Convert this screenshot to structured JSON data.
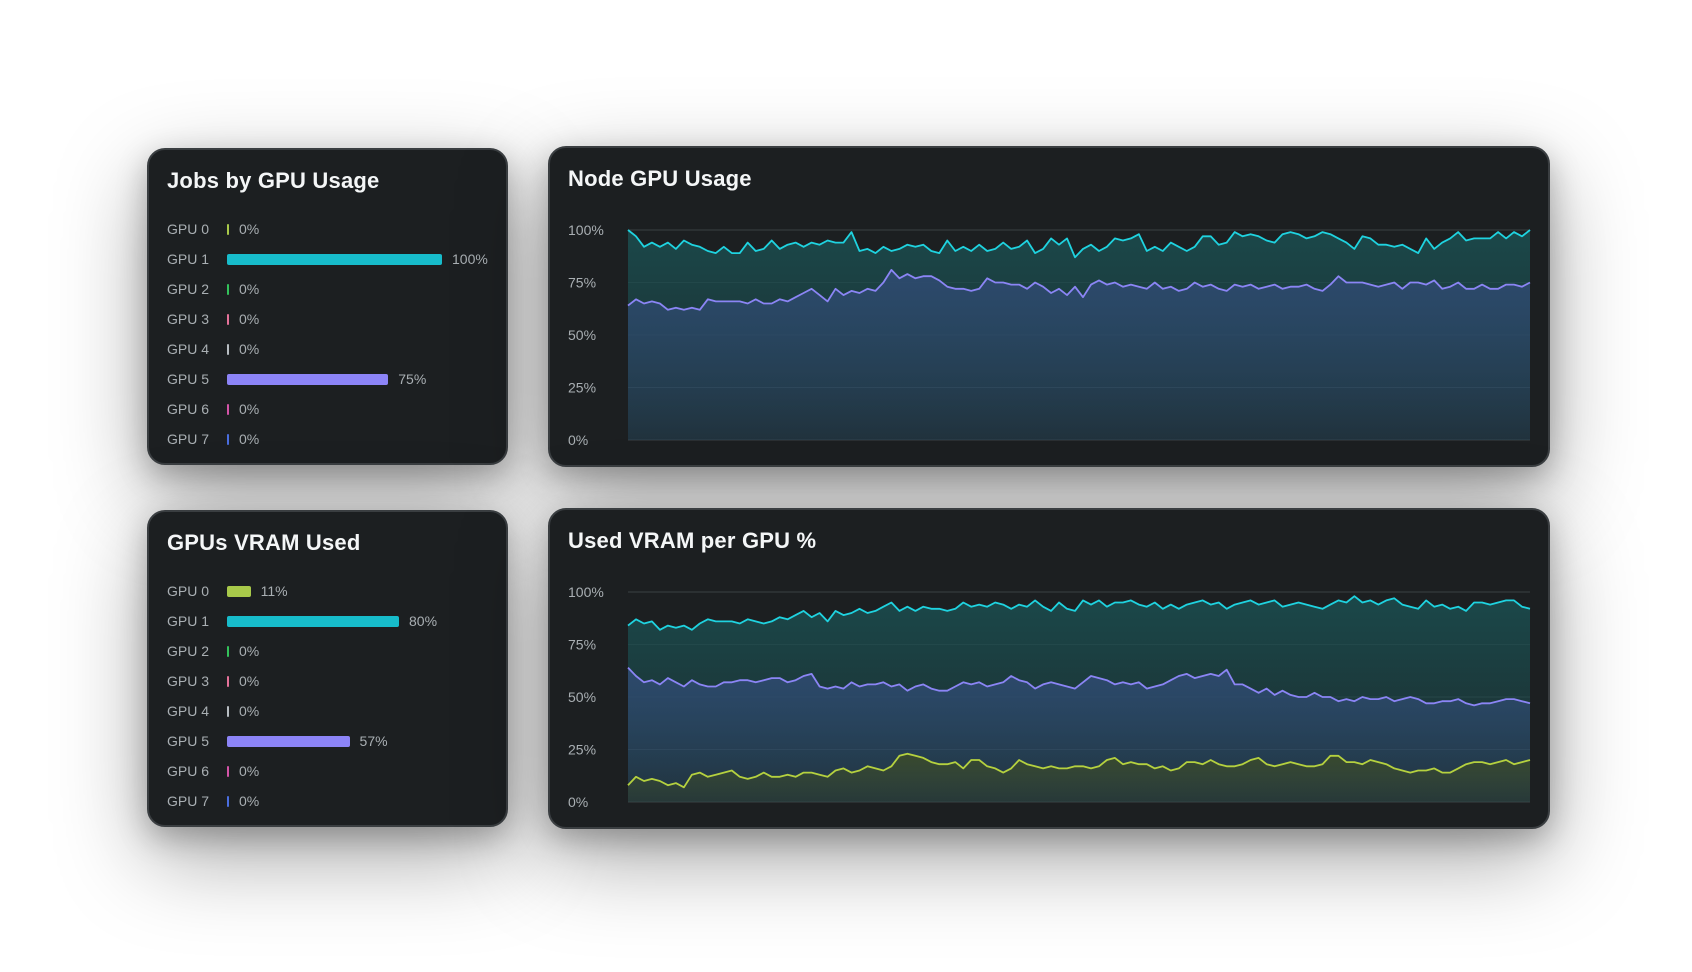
{
  "panels": {
    "jobs_by_gpu": {
      "title": "Jobs by GPU Usage",
      "rows": [
        {
          "label": "GPU 0",
          "value": 0,
          "text": "0%",
          "color": "#a8c94a"
        },
        {
          "label": "GPU 1",
          "value": 100,
          "text": "100%",
          "color": "#17bccb"
        },
        {
          "label": "GPU 2",
          "value": 0,
          "text": "0%",
          "color": "#33c25a"
        },
        {
          "label": "GPU 3",
          "value": 0,
          "text": "0%",
          "color": "#e5729a"
        },
        {
          "label": "GPU 4",
          "value": 0,
          "text": "0%",
          "color": "#b7bdc2"
        },
        {
          "label": "GPU 5",
          "value": 75,
          "text": "75%",
          "color": "#8c84f7"
        },
        {
          "label": "GPU 6",
          "value": 0,
          "text": "0%",
          "color": "#d454a8"
        },
        {
          "label": "GPU 7",
          "value": 0,
          "text": "0%",
          "color": "#4a6ee0"
        }
      ]
    },
    "vram_used": {
      "title": "GPUs VRAM Used",
      "rows": [
        {
          "label": "GPU 0",
          "value": 11,
          "text": "11%",
          "color": "#a8c94a"
        },
        {
          "label": "GPU 1",
          "value": 80,
          "text": "80%",
          "color": "#17bccb"
        },
        {
          "label": "GPU 2",
          "value": 0,
          "text": "0%",
          "color": "#33c25a"
        },
        {
          "label": "GPU 3",
          "value": 0,
          "text": "0%",
          "color": "#e5729a"
        },
        {
          "label": "GPU 4",
          "value": 0,
          "text": "0%",
          "color": "#b7bdc2"
        },
        {
          "label": "GPU 5",
          "value": 57,
          "text": "57%",
          "color": "#8c84f7"
        },
        {
          "label": "GPU 6",
          "value": 0,
          "text": "0%",
          "color": "#d454a8"
        },
        {
          "label": "GPU 7",
          "value": 0,
          "text": "0%",
          "color": "#4a6ee0"
        }
      ]
    },
    "node_gpu_usage": {
      "title": "Node GPU Usage"
    },
    "vram_per_gpu": {
      "title": "Used VRAM per GPU %"
    }
  },
  "chart_data": [
    {
      "type": "bar",
      "title": "Jobs by GPU Usage",
      "categories": [
        "GPU 0",
        "GPU 1",
        "GPU 2",
        "GPU 3",
        "GPU 4",
        "GPU 5",
        "GPU 6",
        "GPU 7"
      ],
      "values": [
        0,
        100,
        0,
        0,
        0,
        75,
        0,
        0
      ]
    },
    {
      "type": "bar",
      "title": "GPUs VRAM Used",
      "categories": [
        "GPU 0",
        "GPU 1",
        "GPU 2",
        "GPU 3",
        "GPU 4",
        "GPU 5",
        "GPU 6",
        "GPU 7"
      ],
      "values": [
        11,
        80,
        0,
        0,
        0,
        57,
        0,
        0
      ]
    },
    {
      "type": "area",
      "title": "Node GPU Usage",
      "y_ticks": [
        "100%",
        "75%",
        "50%",
        "25%",
        "0%"
      ],
      "ylim": [
        0,
        100
      ],
      "grid": true,
      "series": [
        {
          "color": "#1fd3e0",
          "fill": "#1b4a4c",
          "values": [
            100,
            97,
            92,
            94,
            92,
            94,
            91,
            95,
            93,
            92,
            90,
            89,
            92,
            89,
            89,
            94,
            90,
            91,
            95,
            91,
            93,
            94,
            92,
            94,
            93,
            95,
            94,
            94,
            99,
            90,
            91,
            89,
            92,
            90,
            91,
            93,
            92,
            93,
            90,
            89,
            95,
            90,
            92,
            90,
            93,
            90,
            91,
            94,
            91,
            92,
            95,
            89,
            91,
            96,
            93,
            96,
            87,
            91,
            93,
            90,
            92,
            96,
            95,
            96,
            98,
            90,
            92,
            90,
            94,
            92,
            90,
            92,
            97,
            97,
            93,
            94,
            99,
            97,
            98,
            97,
            95,
            94,
            98,
            99,
            98,
            96,
            97,
            99,
            98,
            96,
            94,
            91,
            97,
            96,
            93,
            93,
            92,
            93,
            91,
            89,
            96,
            91,
            94,
            96,
            99,
            95,
            96,
            96,
            96,
            99,
            96,
            99,
            97,
            100
          ]
        },
        {
          "color": "#8b85f5",
          "fill": "#2e4a6f",
          "values": [
            64,
            67,
            65,
            66,
            65,
            62,
            63,
            62,
            63,
            62,
            67,
            66,
            66,
            66,
            66,
            65,
            67,
            65,
            65,
            67,
            66,
            68,
            70,
            72,
            69,
            66,
            72,
            69,
            71,
            70,
            72,
            71,
            75,
            81,
            77,
            79,
            77,
            78,
            78,
            76,
            73,
            72,
            72,
            71,
            72,
            77,
            75,
            75,
            74,
            74,
            72,
            75,
            73,
            70,
            72,
            69,
            73,
            68,
            74,
            76,
            74,
            75,
            73,
            74,
            73,
            72,
            75,
            72,
            73,
            71,
            72,
            75,
            73,
            74,
            72,
            71,
            74,
            73,
            74,
            72,
            73,
            74,
            72,
            73,
            73,
            74,
            72,
            71,
            74,
            78,
            75,
            75,
            75,
            74,
            73,
            74,
            75,
            72,
            75,
            75,
            74,
            76,
            72,
            73,
            75,
            72,
            72,
            74,
            72,
            72,
            74,
            74,
            73,
            75
          ]
        }
      ]
    },
    {
      "type": "area",
      "title": "Used VRAM per GPU %",
      "y_ticks": [
        "100%",
        "75%",
        "50%",
        "25%",
        "0%"
      ],
      "ylim": [
        0,
        100
      ],
      "grid": true,
      "series": [
        {
          "color": "#1fd3e0",
          "fill": "#1b4a4c",
          "values": [
            84,
            87,
            85,
            86,
            82,
            84,
            83,
            84,
            82,
            85,
            87,
            86,
            86,
            86,
            85,
            87,
            86,
            85,
            86,
            88,
            87,
            89,
            91,
            88,
            90,
            86,
            91,
            89,
            90,
            92,
            90,
            91,
            93,
            95,
            91,
            93,
            91,
            93,
            92,
            92,
            91,
            92,
            95,
            93,
            94,
            93,
            95,
            94,
            92,
            94,
            93,
            96,
            93,
            91,
            95,
            92,
            91,
            96,
            94,
            96,
            93,
            95,
            95,
            96,
            94,
            93,
            95,
            92,
            94,
            92,
            94,
            95,
            96,
            94,
            95,
            92,
            94,
            95,
            96,
            94,
            95,
            96,
            93,
            94,
            95,
            94,
            93,
            92,
            94,
            96,
            95,
            98,
            95,
            96,
            94,
            96,
            97,
            94,
            93,
            92,
            96,
            93,
            94,
            92,
            93,
            91,
            95,
            95,
            94,
            95,
            96,
            96,
            93,
            92
          ]
        },
        {
          "color": "#8b85f5",
          "fill": "#2e4a6f",
          "values": [
            64,
            60,
            57,
            58,
            56,
            59,
            57,
            55,
            58,
            56,
            55,
            55,
            57,
            57,
            58,
            58,
            57,
            58,
            59,
            59,
            57,
            58,
            60,
            61,
            55,
            54,
            55,
            54,
            57,
            55,
            56,
            56,
            57,
            55,
            56,
            53,
            55,
            56,
            54,
            53,
            53,
            55,
            57,
            56,
            57,
            55,
            56,
            57,
            60,
            58,
            57,
            54,
            56,
            57,
            56,
            55,
            54,
            57,
            60,
            59,
            58,
            56,
            57,
            56,
            57,
            54,
            55,
            56,
            58,
            60,
            61,
            59,
            60,
            61,
            60,
            63,
            56,
            56,
            54,
            52,
            54,
            51,
            53,
            51,
            50,
            50,
            52,
            50,
            50,
            48,
            49,
            48,
            50,
            49,
            49,
            50,
            48,
            49,
            50,
            49,
            47,
            47,
            48,
            48,
            49,
            47,
            46,
            47,
            47,
            48,
            49,
            49,
            48,
            47
          ]
        },
        {
          "color": "#b5d13f",
          "fill": "#3a4a2b",
          "values": [
            8,
            12,
            10,
            11,
            10,
            8,
            9,
            7,
            13,
            14,
            12,
            13,
            14,
            15,
            12,
            11,
            12,
            14,
            12,
            12,
            13,
            12,
            14,
            14,
            13,
            12,
            15,
            16,
            14,
            15,
            17,
            16,
            15,
            17,
            22,
            23,
            22,
            21,
            19,
            18,
            18,
            19,
            16,
            20,
            20,
            17,
            16,
            14,
            16,
            20,
            18,
            17,
            16,
            17,
            16,
            16,
            17,
            17,
            16,
            17,
            20,
            21,
            18,
            19,
            18,
            18,
            16,
            17,
            15,
            16,
            19,
            19,
            18,
            20,
            18,
            17,
            17,
            18,
            20,
            21,
            18,
            17,
            18,
            19,
            18,
            17,
            17,
            18,
            22,
            22,
            19,
            19,
            18,
            20,
            19,
            18,
            16,
            15,
            14,
            15,
            15,
            16,
            14,
            14,
            16,
            18,
            19,
            19,
            18,
            19,
            20,
            18,
            19,
            20
          ]
        }
      ]
    }
  ]
}
